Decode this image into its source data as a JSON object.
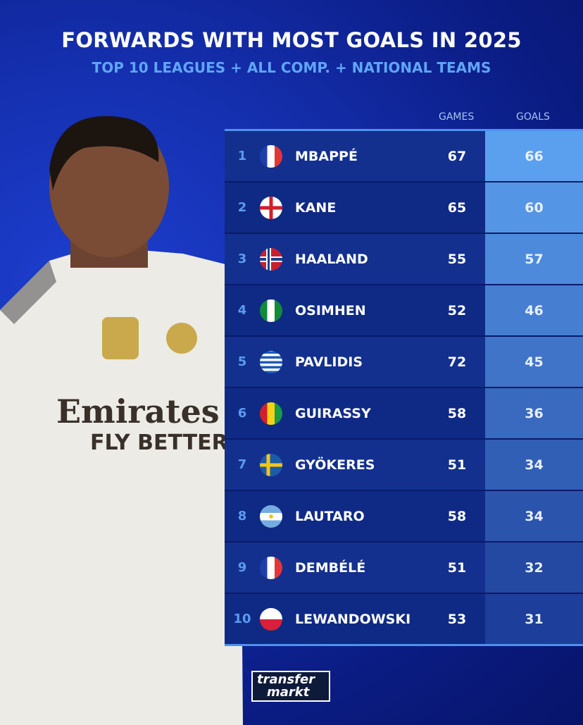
{
  "header": {
    "title": "FORWARDS WITH MOST GOALS IN 2025",
    "subtitle": "TOP 10 LEAGUES + ALL COMP. + NATIONAL TEAMS"
  },
  "columns": {
    "games": "GAMES",
    "goals": "GOALS"
  },
  "rows": [
    {
      "rank": "1",
      "flag": "france",
      "name": "MBAPPÉ",
      "games": "67",
      "goals": "66"
    },
    {
      "rank": "2",
      "flag": "england",
      "name": "KANE",
      "games": "65",
      "goals": "60"
    },
    {
      "rank": "3",
      "flag": "norway",
      "name": "HAALAND",
      "games": "55",
      "goals": "57"
    },
    {
      "rank": "4",
      "flag": "nigeria",
      "name": "OSIMHEN",
      "games": "52",
      "goals": "46"
    },
    {
      "rank": "5",
      "flag": "greece",
      "name": "PAVLIDIS",
      "games": "72",
      "goals": "45"
    },
    {
      "rank": "6",
      "flag": "guinea",
      "name": "GUIRASSY",
      "games": "58",
      "goals": "36"
    },
    {
      "rank": "7",
      "flag": "sweden",
      "name": "GYÖKERES",
      "games": "51",
      "goals": "34"
    },
    {
      "rank": "8",
      "flag": "argentina",
      "name": "LAUTARO",
      "games": "58",
      "goals": "34"
    },
    {
      "rank": "9",
      "flag": "france",
      "name": "DEMBÉLÉ",
      "games": "51",
      "goals": "32"
    },
    {
      "rank": "10",
      "flag": "poland",
      "name": "LEWANDOWSKI",
      "games": "53",
      "goals": "31"
    }
  ],
  "chart_data": {
    "type": "table",
    "title": "FORWARDS WITH MOST GOALS IN 2025",
    "subtitle": "TOP 10 LEAGUES + ALL COMP. + NATIONAL TEAMS",
    "columns": [
      "GAMES",
      "GOALS"
    ],
    "categories": [
      "MBAPPÉ",
      "KANE",
      "HAALAND",
      "OSIMHEN",
      "PAVLIDIS",
      "GUIRASSY",
      "GYÖKERES",
      "LAUTARO",
      "DEMBÉLÉ",
      "LEWANDOWSKI"
    ],
    "series": [
      {
        "name": "GAMES",
        "values": [
          67,
          65,
          55,
          52,
          72,
          58,
          51,
          58,
          51,
          53
        ]
      },
      {
        "name": "GOALS",
        "values": [
          66,
          60,
          57,
          46,
          45,
          36,
          34,
          34,
          32,
          31
        ]
      }
    ]
  },
  "logo": {
    "line1": "transfer",
    "line2": "markt"
  },
  "colors": {
    "background": "#0b1d86",
    "goals_top": "#5ba0ee",
    "goals_bottom": "#1d3e9a",
    "accent": "#5fa6f5"
  }
}
